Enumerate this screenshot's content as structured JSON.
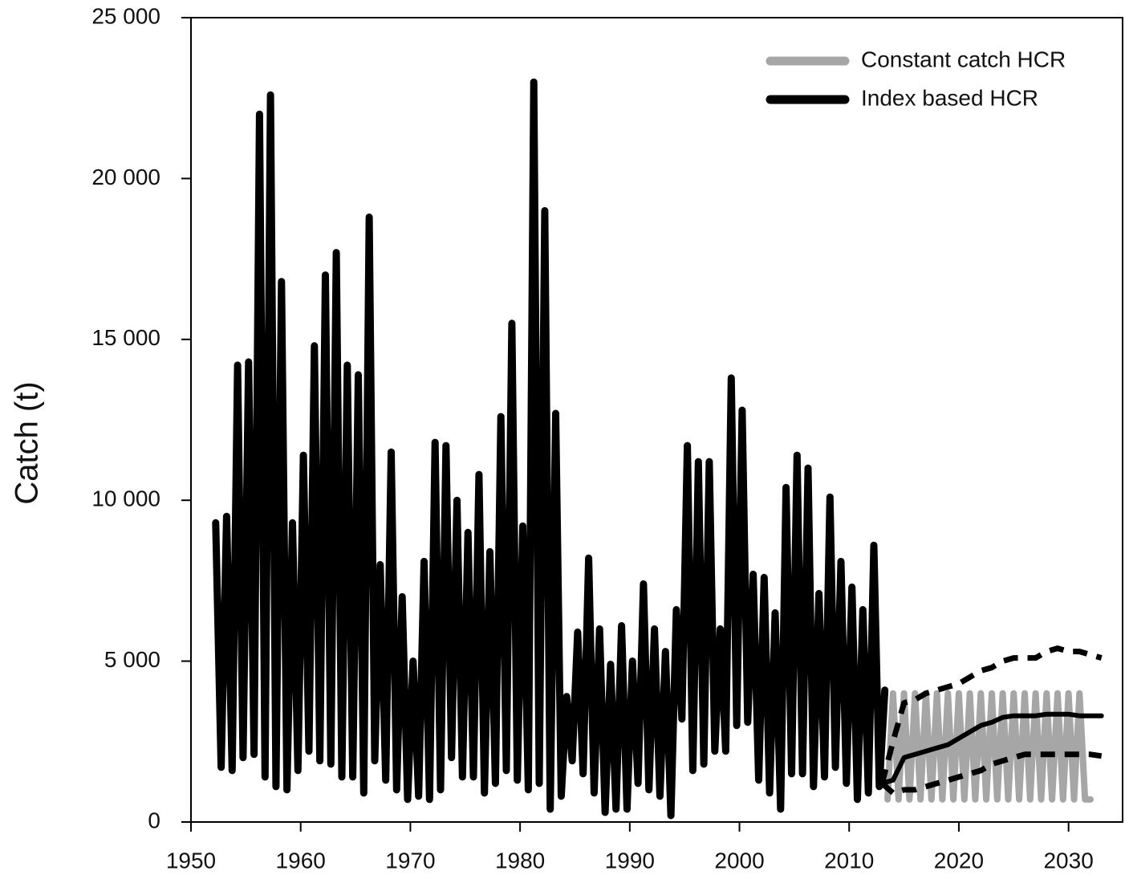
{
  "chart_data": {
    "type": "line",
    "ylabel": "Catch (t)",
    "xlim": [
      1950,
      2035
    ],
    "ylim": [
      0,
      25000
    ],
    "xticks": [
      1950,
      1960,
      1970,
      1980,
      1990,
      2000,
      2010,
      2020,
      2030
    ],
    "yticks": [
      0,
      {
        "value": 5000,
        "label": "5 000"
      },
      {
        "value": 10000,
        "label": "10 000"
      },
      {
        "value": 15000,
        "label": "15 000"
      },
      {
        "value": 20000,
        "label": "20 000"
      },
      {
        "value": 25000,
        "label": "25 000"
      }
    ],
    "legend": "upper right",
    "series": [
      {
        "color": "#000000",
        "x": [
          1952.25,
          1952.75,
          1953.25,
          1953.75,
          1954.25,
          1954.75,
          1955.25,
          1955.75,
          1956.25,
          1956.75,
          1957.25,
          1957.75,
          1958.25,
          1958.75,
          1959.25,
          1959.75,
          1960.25,
          1960.75,
          1961.25,
          1961.75,
          1962.25,
          1962.75,
          1963.25,
          1963.75,
          1964.25,
          1964.75,
          1965.25,
          1965.75,
          1966.25,
          1966.75,
          1967.25,
          1967.75,
          1968.25,
          1968.75,
          1969.25,
          1969.75,
          1970.25,
          1970.75,
          1971.25,
          1971.75,
          1972.25,
          1972.75,
          1973.25,
          1973.75,
          1974.25,
          1974.75,
          1975.25,
          1975.75,
          1976.25,
          1976.75,
          1977.25,
          1977.75,
          1978.25,
          1978.75,
          1979.25,
          1979.75,
          1980.25,
          1980.75,
          1981.25,
          1981.75,
          1982.25,
          1982.75,
          1983.25,
          1983.75,
          1984.25,
          1984.75,
          1985.25,
          1985.75,
          1986.25,
          1986.75,
          1987.25,
          1987.75,
          1988.25,
          1988.75,
          1989.25,
          1989.75,
          1990.25,
          1990.75,
          1991.25,
          1991.75,
          1992.25,
          1992.75,
          1993.25,
          1993.75,
          1994.25,
          1994.75,
          1995.25,
          1995.75,
          1996.25,
          1996.75,
          1997.25,
          1997.75,
          1998.25,
          1998.75,
          1999.25,
          1999.75,
          2000.25,
          2000.75,
          2001.25,
          2001.75,
          2002.25,
          2002.75,
          2003.25,
          2003.75,
          2004.25,
          2004.75,
          2005.25,
          2005.75,
          2006.25,
          2006.75,
          2007.25,
          2007.75,
          2008.25,
          2008.75,
          2009.25,
          2009.75,
          2010.25,
          2010.75,
          2011.25,
          2011.75,
          2012.25,
          2012.75,
          2013.25
        ],
        "values": [
          9300,
          1700,
          9500,
          1600,
          14200,
          2000,
          14300,
          2100,
          22000,
          1400,
          22600,
          1100,
          16800,
          1000,
          9300,
          1600,
          11400,
          2200,
          14800,
          1900,
          17000,
          1800,
          17700,
          1400,
          14200,
          1400,
          13900,
          900,
          18800,
          1900,
          8000,
          1300,
          11500,
          1000,
          7000,
          700,
          5000,
          800,
          8100,
          700,
          11800,
          1000,
          11700,
          2000,
          10000,
          1400,
          9000,
          1400,
          10800,
          900,
          8400,
          1200,
          12600,
          1600,
          15500,
          1300,
          9200,
          1000,
          23000,
          1200,
          19000,
          400,
          12700,
          800,
          3900,
          1900,
          5900,
          1500,
          8200,
          900,
          6000,
          300,
          4900,
          400,
          6100,
          400,
          5000,
          1200,
          7400,
          1000,
          6000,
          800,
          5300,
          200,
          6600,
          3200,
          11700,
          1600,
          11200,
          1800,
          11200,
          2200,
          6000,
          2200,
          13800,
          3000,
          12800,
          3100,
          7700,
          1300,
          7600,
          900,
          6500,
          400,
          10400,
          1500,
          11400,
          1500,
          11000,
          1100,
          7100,
          1400,
          10100,
          1700,
          8100,
          1200,
          7300,
          700,
          6600,
          900,
          8600,
          1100,
          4100
        ]
      },
      {
        "name": "Constant catch HCR",
        "color": "#a6a6a6",
        "x": [
          2013.5,
          2014,
          2014.5,
          2015,
          2015.5,
          2016,
          2016.5,
          2017,
          2017.5,
          2018,
          2018.5,
          2019,
          2019.5,
          2020,
          2020.5,
          2021,
          2021.5,
          2022,
          2022.5,
          2023,
          2023.5,
          2024,
          2024.5,
          2025,
          2025.5,
          2026,
          2026.5,
          2027,
          2027.5,
          2028,
          2028.5,
          2029,
          2029.5,
          2030,
          2030.5,
          2031,
          2031.5,
          2032
        ],
        "values": [
          700,
          4000,
          700,
          4000,
          700,
          4000,
          700,
          4000,
          700,
          4000,
          700,
          4000,
          700,
          4000,
          700,
          4000,
          700,
          4000,
          700,
          4000,
          700,
          4000,
          700,
          4000,
          700,
          4000,
          700,
          4000,
          700,
          4000,
          700,
          4000,
          700,
          4000,
          700,
          4000,
          700,
          700
        ]
      },
      {
        "name": "Index based HCR",
        "color": "#000000",
        "x": [
          2013,
          2014,
          2015,
          2016,
          2017,
          2018,
          2019,
          2020,
          2021,
          2022,
          2023,
          2024,
          2025,
          2026,
          2027,
          2028,
          2029,
          2030,
          2031,
          2032,
          2033
        ],
        "values": [
          1200,
          1300,
          2000,
          2100,
          2200,
          2300,
          2400,
          2600,
          2800,
          3000,
          3100,
          3250,
          3300,
          3300,
          3300,
          3350,
          3350,
          3350,
          3300,
          3300,
          3300
        ],
        "lower": [
          1200,
          900,
          1000,
          1000,
          1100,
          1200,
          1300,
          1400,
          1500,
          1600,
          1800,
          1900,
          2000,
          2100,
          2100,
          2100,
          2100,
          2100,
          2100,
          2100,
          2050
        ],
        "upper": [
          1200,
          2500,
          3700,
          3800,
          4000,
          4100,
          4200,
          4300,
          4500,
          4700,
          4800,
          5000,
          5100,
          5100,
          5100,
          5300,
          5400,
          5300,
          5300,
          5200,
          5100
        ]
      }
    ]
  }
}
